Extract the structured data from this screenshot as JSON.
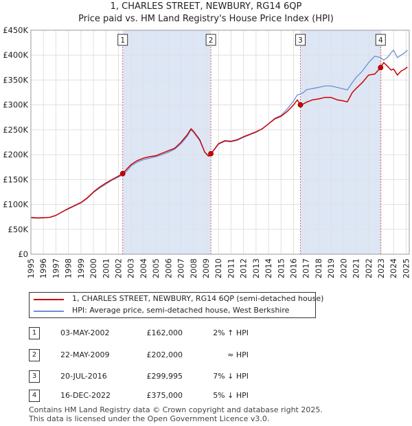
{
  "chart_data": {
    "type": "line",
    "title": "1, CHARLES STREET, NEWBURY, RG14 6QP",
    "subtitle": "Price paid vs. HM Land Registry's House Price Index (HPI)",
    "xlim": [
      1995,
      2025.25
    ],
    "ylim": [
      0,
      450000
    ],
    "x_ticks": [
      1995,
      1996,
      1997,
      1998,
      1999,
      2000,
      2001,
      2002,
      2003,
      2004,
      2005,
      2006,
      2007,
      2008,
      2009,
      2010,
      2011,
      2012,
      2013,
      2014,
      2015,
      2016,
      2017,
      2018,
      2019,
      2020,
      2021,
      2022,
      2023,
      2024,
      2025
    ],
    "y_ticks": [
      {
        "value": 0,
        "label": "£0"
      },
      {
        "value": 50000,
        "label": "£50K"
      },
      {
        "value": 100000,
        "label": "£100K"
      },
      {
        "value": 150000,
        "label": "£150K"
      },
      {
        "value": 200000,
        "label": "£200K"
      },
      {
        "value": 250000,
        "label": "£250K"
      },
      {
        "value": 300000,
        "label": "£300K"
      },
      {
        "value": 350000,
        "label": "£350K"
      },
      {
        "value": 400000,
        "label": "£400K"
      },
      {
        "value": 450000,
        "label": "£450K"
      }
    ],
    "colors": {
      "property": "#cc0000",
      "hpi": "#6a8fd0",
      "shade": "#dde6f5",
      "grid": "#e0e0e0",
      "event_line": "#e06060"
    },
    "shaded_periods": [
      [
        2002.34,
        2009.39
      ],
      [
        2016.55,
        2022.96
      ]
    ],
    "series": [
      {
        "name": "1, CHARLES STREET, NEWBURY, RG14 6QP (semi-detached house)",
        "role": "property",
        "x": [
          1995.0,
          1995.5,
          1996.0,
          1996.5,
          1997.0,
          1997.5,
          1998.0,
          1998.5,
          1999.0,
          1999.5,
          2000.0,
          2000.5,
          2001.0,
          2001.5,
          2002.0,
          2002.34,
          2002.7,
          2003.0,
          2003.5,
          2004.0,
          2004.5,
          2005.0,
          2005.5,
          2006.0,
          2006.5,
          2007.0,
          2007.5,
          2007.8,
          2008.0,
          2008.5,
          2008.9,
          2009.2,
          2009.39,
          2009.7,
          2010.0,
          2010.5,
          2011.0,
          2011.5,
          2012.0,
          2012.5,
          2013.0,
          2013.5,
          2014.0,
          2014.5,
          2015.0,
          2015.5,
          2016.0,
          2016.3,
          2016.55,
          2016.8,
          2017.0,
          2017.5,
          2018.0,
          2018.5,
          2019.0,
          2019.5,
          2020.0,
          2020.3,
          2020.7,
          2021.0,
          2021.5,
          2022.0,
          2022.5,
          2022.96,
          2023.2,
          2023.5,
          2023.8,
          2024.0,
          2024.3,
          2024.6,
          2024.9,
          2025.1
        ],
        "values": [
          74000,
          73000,
          73500,
          74000,
          78000,
          85000,
          92000,
          98000,
          104000,
          113000,
          125000,
          135000,
          143000,
          150000,
          157000,
          162000,
          172000,
          180000,
          188000,
          193000,
          196000,
          198000,
          203000,
          208000,
          213000,
          225000,
          240000,
          252000,
          247000,
          230000,
          205000,
          197000,
          202000,
          212000,
          222000,
          228000,
          227000,
          230000,
          236000,
          241000,
          246000,
          252000,
          262000,
          272000,
          277000,
          287000,
          300000,
          310000,
          299995,
          302000,
          305000,
          310000,
          312000,
          315000,
          315000,
          310000,
          308000,
          306000,
          325000,
          333000,
          345000,
          360000,
          362000,
          375000,
          385000,
          378000,
          370000,
          372000,
          360000,
          368000,
          372000,
          376000
        ]
      },
      {
        "name": "HPI: Average price, semi-detached house, West Berkshire",
        "role": "hpi",
        "x": [
          1995.0,
          1995.5,
          1996.0,
          1996.5,
          1997.0,
          1997.5,
          1998.0,
          1998.5,
          1999.0,
          1999.5,
          2000.0,
          2000.5,
          2001.0,
          2001.5,
          2002.0,
          2002.34,
          2002.7,
          2003.0,
          2003.5,
          2004.0,
          2004.5,
          2005.0,
          2005.5,
          2006.0,
          2006.5,
          2007.0,
          2007.5,
          2007.8,
          2008.0,
          2008.5,
          2008.9,
          2009.2,
          2009.39,
          2009.7,
          2010.0,
          2010.5,
          2011.0,
          2011.5,
          2012.0,
          2012.5,
          2013.0,
          2013.5,
          2014.0,
          2014.5,
          2015.0,
          2015.5,
          2016.0,
          2016.3,
          2016.55,
          2016.8,
          2017.0,
          2017.5,
          2018.0,
          2018.5,
          2019.0,
          2019.5,
          2020.0,
          2020.3,
          2020.7,
          2021.0,
          2021.5,
          2022.0,
          2022.5,
          2022.96,
          2023.2,
          2023.5,
          2023.8,
          2024.0,
          2024.3,
          2024.6,
          2024.9,
          2025.1
        ],
        "values": [
          73000,
          72500,
          73000,
          74000,
          78000,
          85000,
          91000,
          97000,
          103000,
          112000,
          124000,
          133000,
          141000,
          149000,
          155000,
          159000,
          168000,
          177000,
          185000,
          190000,
          193000,
          196000,
          200000,
          205000,
          211000,
          222000,
          237000,
          250000,
          245000,
          228000,
          205000,
          198000,
          202000,
          211000,
          221000,
          227000,
          226000,
          229000,
          235000,
          240000,
          245000,
          252000,
          262000,
          273000,
          279000,
          292000,
          308000,
          320000,
          322000,
          325000,
          330000,
          333000,
          335000,
          338000,
          338000,
          335000,
          332000,
          330000,
          345000,
          355000,
          368000,
          385000,
          398000,
          395000,
          390000,
          395000,
          405000,
          410000,
          395000,
          400000,
          405000,
          410000
        ]
      }
    ],
    "events": [
      {
        "label": "1",
        "x": 2002.34,
        "value": 162000
      },
      {
        "label": "2",
        "x": 2009.39,
        "value": 202000
      },
      {
        "label": "3",
        "x": 2016.55,
        "value": 299995
      },
      {
        "label": "4",
        "x": 2022.96,
        "value": 375000
      }
    ]
  },
  "legend": {
    "property_label": "1, CHARLES STREET, NEWBURY, RG14 6QP (semi-detached house)",
    "hpi_label": "HPI: Average price, semi-detached house, West Berkshire"
  },
  "transactions": [
    {
      "num": "1",
      "date": "03-MAY-2002",
      "price": "£162,000",
      "hpi": "2% ↑ HPI"
    },
    {
      "num": "2",
      "date": "22-MAY-2009",
      "price": "£202,000",
      "hpi": "≈ HPI"
    },
    {
      "num": "3",
      "date": "20-JUL-2016",
      "price": "£299,995",
      "hpi": "7% ↓ HPI"
    },
    {
      "num": "4",
      "date": "16-DEC-2022",
      "price": "£375,000",
      "hpi": "5% ↓ HPI"
    }
  ],
  "footer": {
    "line1": "Contains HM Land Registry data © Crown copyright and database right 2025.",
    "line2": "This data is licensed under the Open Government Licence v3.0."
  }
}
